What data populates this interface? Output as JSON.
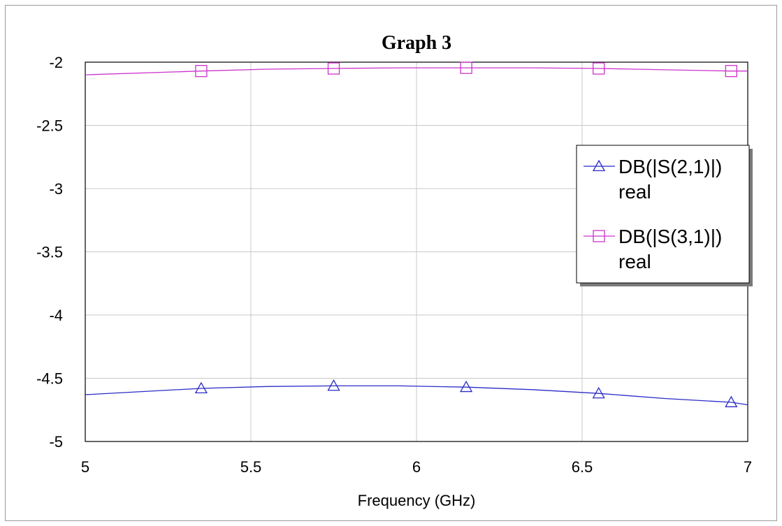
{
  "chart_data": {
    "type": "line",
    "title": "Graph 3",
    "xlabel": "Frequency (GHz)",
    "ylabel": "",
    "xlim": [
      5,
      7
    ],
    "ylim": [
      -5,
      -2
    ],
    "x_ticks": [
      "5",
      "5.5",
      "6",
      "6.5",
      "7"
    ],
    "y_ticks": [
      "-2",
      "-2.5",
      "-3",
      "-3.5",
      "-4",
      "-4.5",
      "-5"
    ],
    "grid": true,
    "legend_position": "right",
    "series": [
      {
        "name": "DB(|S(2,1)|)",
        "sublabel": "real",
        "color": "#2b2bc8",
        "marker": "triangle",
        "x": [
          5.0,
          5.35,
          5.55,
          5.75,
          5.95,
          6.15,
          6.35,
          6.55,
          6.75,
          6.95,
          7.0
        ],
        "y": [
          -4.63,
          -4.58,
          -4.565,
          -4.56,
          -4.56,
          -4.57,
          -4.59,
          -4.62,
          -4.66,
          -4.69,
          -4.71
        ],
        "marker_x": [
          5.35,
          5.75,
          6.15,
          6.55,
          6.95
        ],
        "marker_y": [
          -4.58,
          -4.56,
          -4.57,
          -4.62,
          -4.69
        ]
      },
      {
        "name": "DB(|S(3,1)|)",
        "sublabel": "real",
        "color": "#cc33cc",
        "marker": "square",
        "x": [
          5.0,
          5.35,
          5.55,
          5.75,
          5.95,
          6.15,
          6.35,
          6.55,
          6.75,
          6.95,
          7.0
        ],
        "y": [
          -2.1,
          -2.07,
          -2.055,
          -2.05,
          -2.045,
          -2.045,
          -2.045,
          -2.05,
          -2.06,
          -2.07,
          -2.07
        ],
        "marker_x": [
          5.35,
          5.75,
          6.15,
          6.55,
          6.95
        ],
        "marker_y": [
          -2.07,
          -2.05,
          -2.045,
          -2.05,
          -2.07
        ]
      }
    ]
  }
}
